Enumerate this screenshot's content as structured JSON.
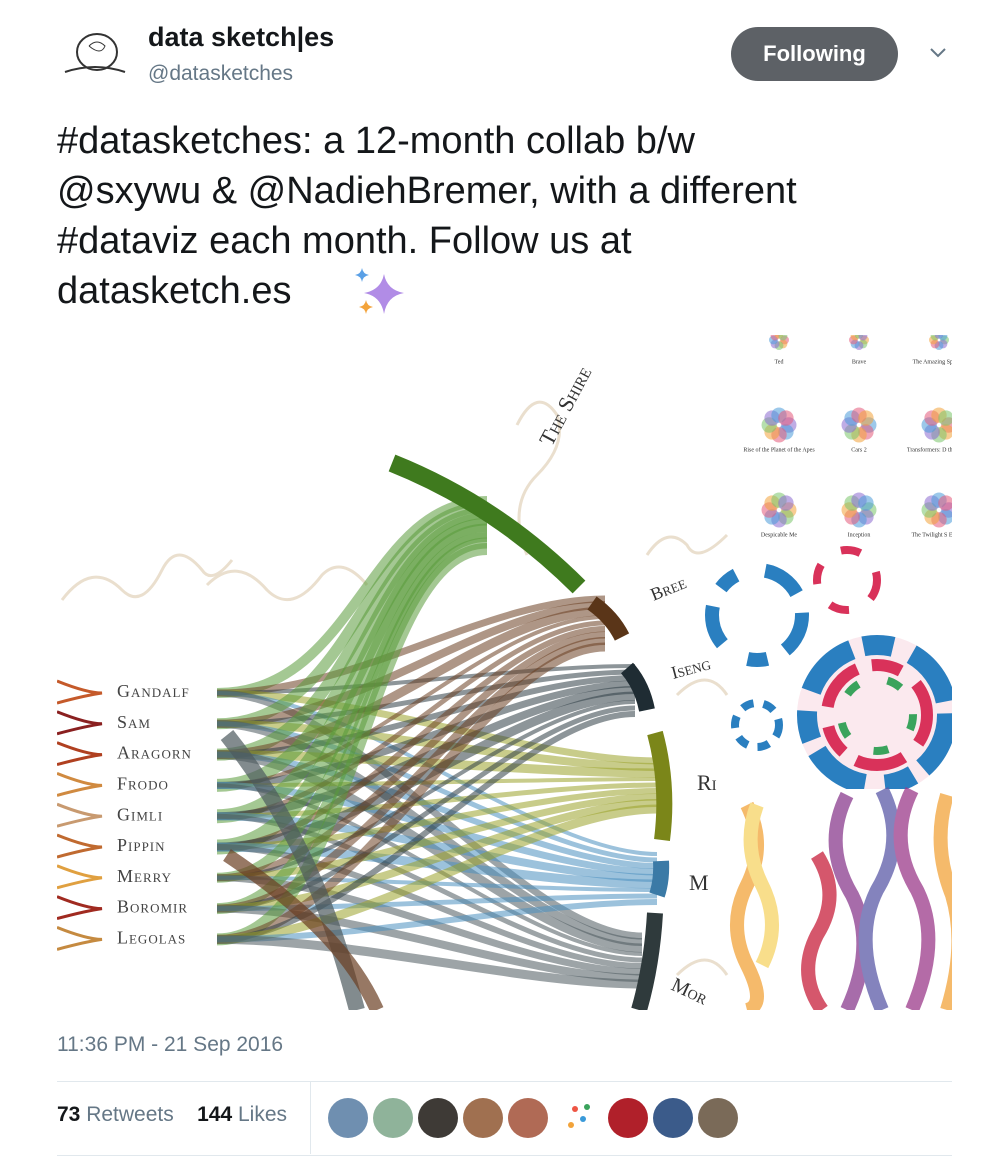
{
  "tweet": {
    "name": "data sketch|es",
    "handle": "@datasketches",
    "follow_button": "Following",
    "text_lines": [
      "#datasketches: a 12-month collab b/w",
      "@sxywu & @NadiehBremer, with a different",
      "#dataviz each month. Follow us at",
      "datasketch.es"
    ],
    "timestamp": "11:36 PM - 21 Sep 2016",
    "retweets": {
      "count": 73,
      "label": "Retweets"
    },
    "likes": {
      "count": 144,
      "label": "Likes"
    }
  },
  "image": {
    "characters": [
      "Gandalf",
      "Sam",
      "Aragorn",
      "Frodo",
      "Gimli",
      "Pippin",
      "Merry",
      "Boromir",
      "Legolas"
    ],
    "locations": [
      "The Shire",
      "Bree",
      "Iseng",
      "Ri",
      "M",
      "Mor"
    ],
    "movies": [
      "Ted",
      "Brave",
      "The Amazing Sp Man",
      "Rise of the Planet of the Apes",
      "Cars 2",
      "Transformers: D the Moon",
      "Despicable Me",
      "Inception",
      "The Twilight S Eclipse"
    ]
  }
}
